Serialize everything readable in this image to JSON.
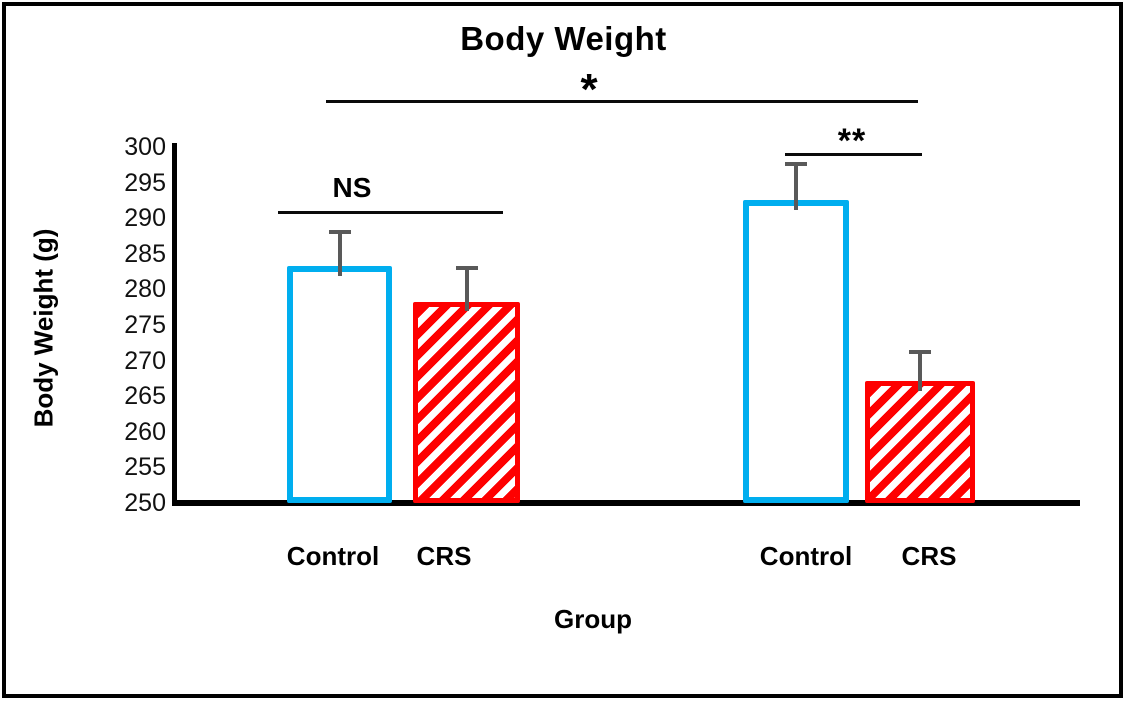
{
  "figure": {
    "title": "Body Weight"
  },
  "chart_data": {
    "type": "bar",
    "title": "Body Weight",
    "xlabel": "Group",
    "ylabel": "Body Weight (g)",
    "ylim": [
      250,
      300
    ],
    "ytick_step": 5,
    "yticks": [
      300,
      295,
      290,
      285,
      280,
      275,
      270,
      265,
      260,
      255,
      250
    ],
    "grid": false,
    "legend": "none",
    "categories": [
      "Control",
      "CRS",
      "Control",
      "CRS"
    ],
    "bars": [
      {
        "label": "Control",
        "group": 1,
        "value": 283.3,
        "error_plus": 4.9,
        "style": "control"
      },
      {
        "label": "CRS",
        "group": 1,
        "value": 278.3,
        "error_plus": 4.8,
        "style": "crs"
      },
      {
        "label": "Control",
        "group": 2,
        "value": 292.6,
        "error_plus": 5.2,
        "style": "control"
      },
      {
        "label": "CRS",
        "group": 2,
        "value": 267.1,
        "error_plus": 4.2,
        "style": "crs"
      }
    ],
    "annotations": [
      {
        "text": "NS",
        "compares": "group1 Control vs group1 CRS"
      },
      {
        "text": "*",
        "compares": "group1 vs group2"
      },
      {
        "text": "**",
        "compares": "group2 Control vs group2 CRS"
      }
    ],
    "colors": {
      "control_border": "#00AEEF",
      "control_fill": "#FFFFFF",
      "crs": "#FE0000",
      "error_bar": "#595959",
      "axis": "#000000",
      "text": "#000000"
    }
  }
}
